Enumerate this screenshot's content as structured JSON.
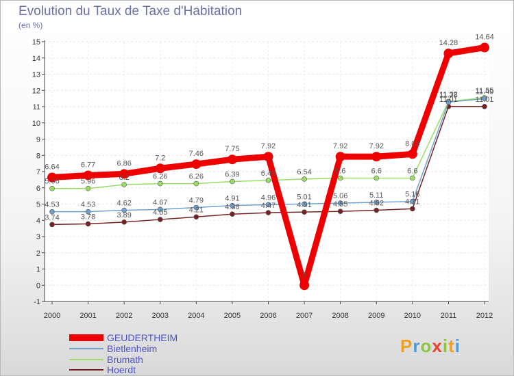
{
  "chart_data": {
    "type": "line",
    "title": "Evolution du Taux de Taxe d'Habitation",
    "ylabel": "(en %)",
    "xlabel": "",
    "ylim": [
      -1,
      15
    ],
    "yticks": [
      "-1",
      "0",
      "1",
      "2",
      "3",
      "4",
      "5",
      "6",
      "7",
      "8",
      "9",
      "10",
      "11",
      "12",
      "13",
      "14",
      "15"
    ],
    "categories": [
      "2000",
      "2001",
      "2002",
      "2003",
      "2004",
      "2005",
      "2006",
      "2007",
      "2008",
      "2009",
      "2010",
      "2011",
      "2012"
    ],
    "series": [
      {
        "name": "GEUDERTHEIM",
        "color": "#ee0000",
        "values": [
          6.64,
          6.77,
          6.86,
          7.2,
          7.46,
          7.75,
          7.92,
          0,
          7.92,
          7.92,
          8.08,
          14.28,
          14.64
        ],
        "labels": [
          "6.64",
          "6.77",
          "6.86",
          "7.2",
          "7.46",
          "7.75",
          "7.92",
          "0",
          "7.92",
          "7.92",
          "8.08",
          "14.28",
          "14.64"
        ]
      },
      {
        "name": "Bietlenheim",
        "color": "#6fa0d0",
        "values": [
          4.53,
          4.53,
          4.62,
          4.67,
          4.79,
          4.91,
          4.96,
          5.01,
          5.06,
          5.11,
          5.16,
          11.28,
          11.49
        ],
        "labels": [
          "4.53",
          "4.53",
          "4.62",
          "4.67",
          "4.79",
          "4.91",
          "4.96",
          "5.01",
          "5.06",
          "5.11",
          "5.16",
          "11.28",
          "11.49"
        ]
      },
      {
        "name": "Brumath",
        "color": "#99dd66",
        "values": [
          5.96,
          5.96,
          6.2,
          6.26,
          6.26,
          6.39,
          6.46,
          6.54,
          6.6,
          6.6,
          6.6,
          11.32,
          11.55
        ],
        "labels": [
          "5.96",
          "5.96",
          "6.2",
          "6.26",
          "6.26",
          "6.39",
          "6.46",
          "6.54",
          "6.6",
          "6.6",
          "6.6",
          "11.32",
          "11.55"
        ]
      },
      {
        "name": "Hoerdt",
        "color": "#772222",
        "values": [
          3.74,
          3.78,
          3.89,
          4.05,
          4.21,
          4.38,
          4.47,
          4.51,
          4.55,
          4.62,
          4.71,
          11.01,
          11.01
        ],
        "labels": [
          "3.74",
          "3.78",
          "3.89",
          "4.05",
          "4.21",
          "4.38",
          "4.47",
          "4.51",
          "4.55",
          "4.62",
          "4.71",
          "11.01",
          "11.01"
        ]
      }
    ]
  },
  "legend": [
    "GEUDERTHEIM",
    "Bietlenheim",
    "Brumath",
    "Hoerdt"
  ],
  "logo": {
    "letters": [
      "P",
      "r",
      "o",
      "x",
      "i",
      "t",
      "i"
    ],
    "colors": [
      "#f0a020",
      "#4d9ad8",
      "#8cc63f",
      "#e8432c",
      "#8cc63f",
      "#f0a020",
      "#4d9ad8"
    ]
  }
}
